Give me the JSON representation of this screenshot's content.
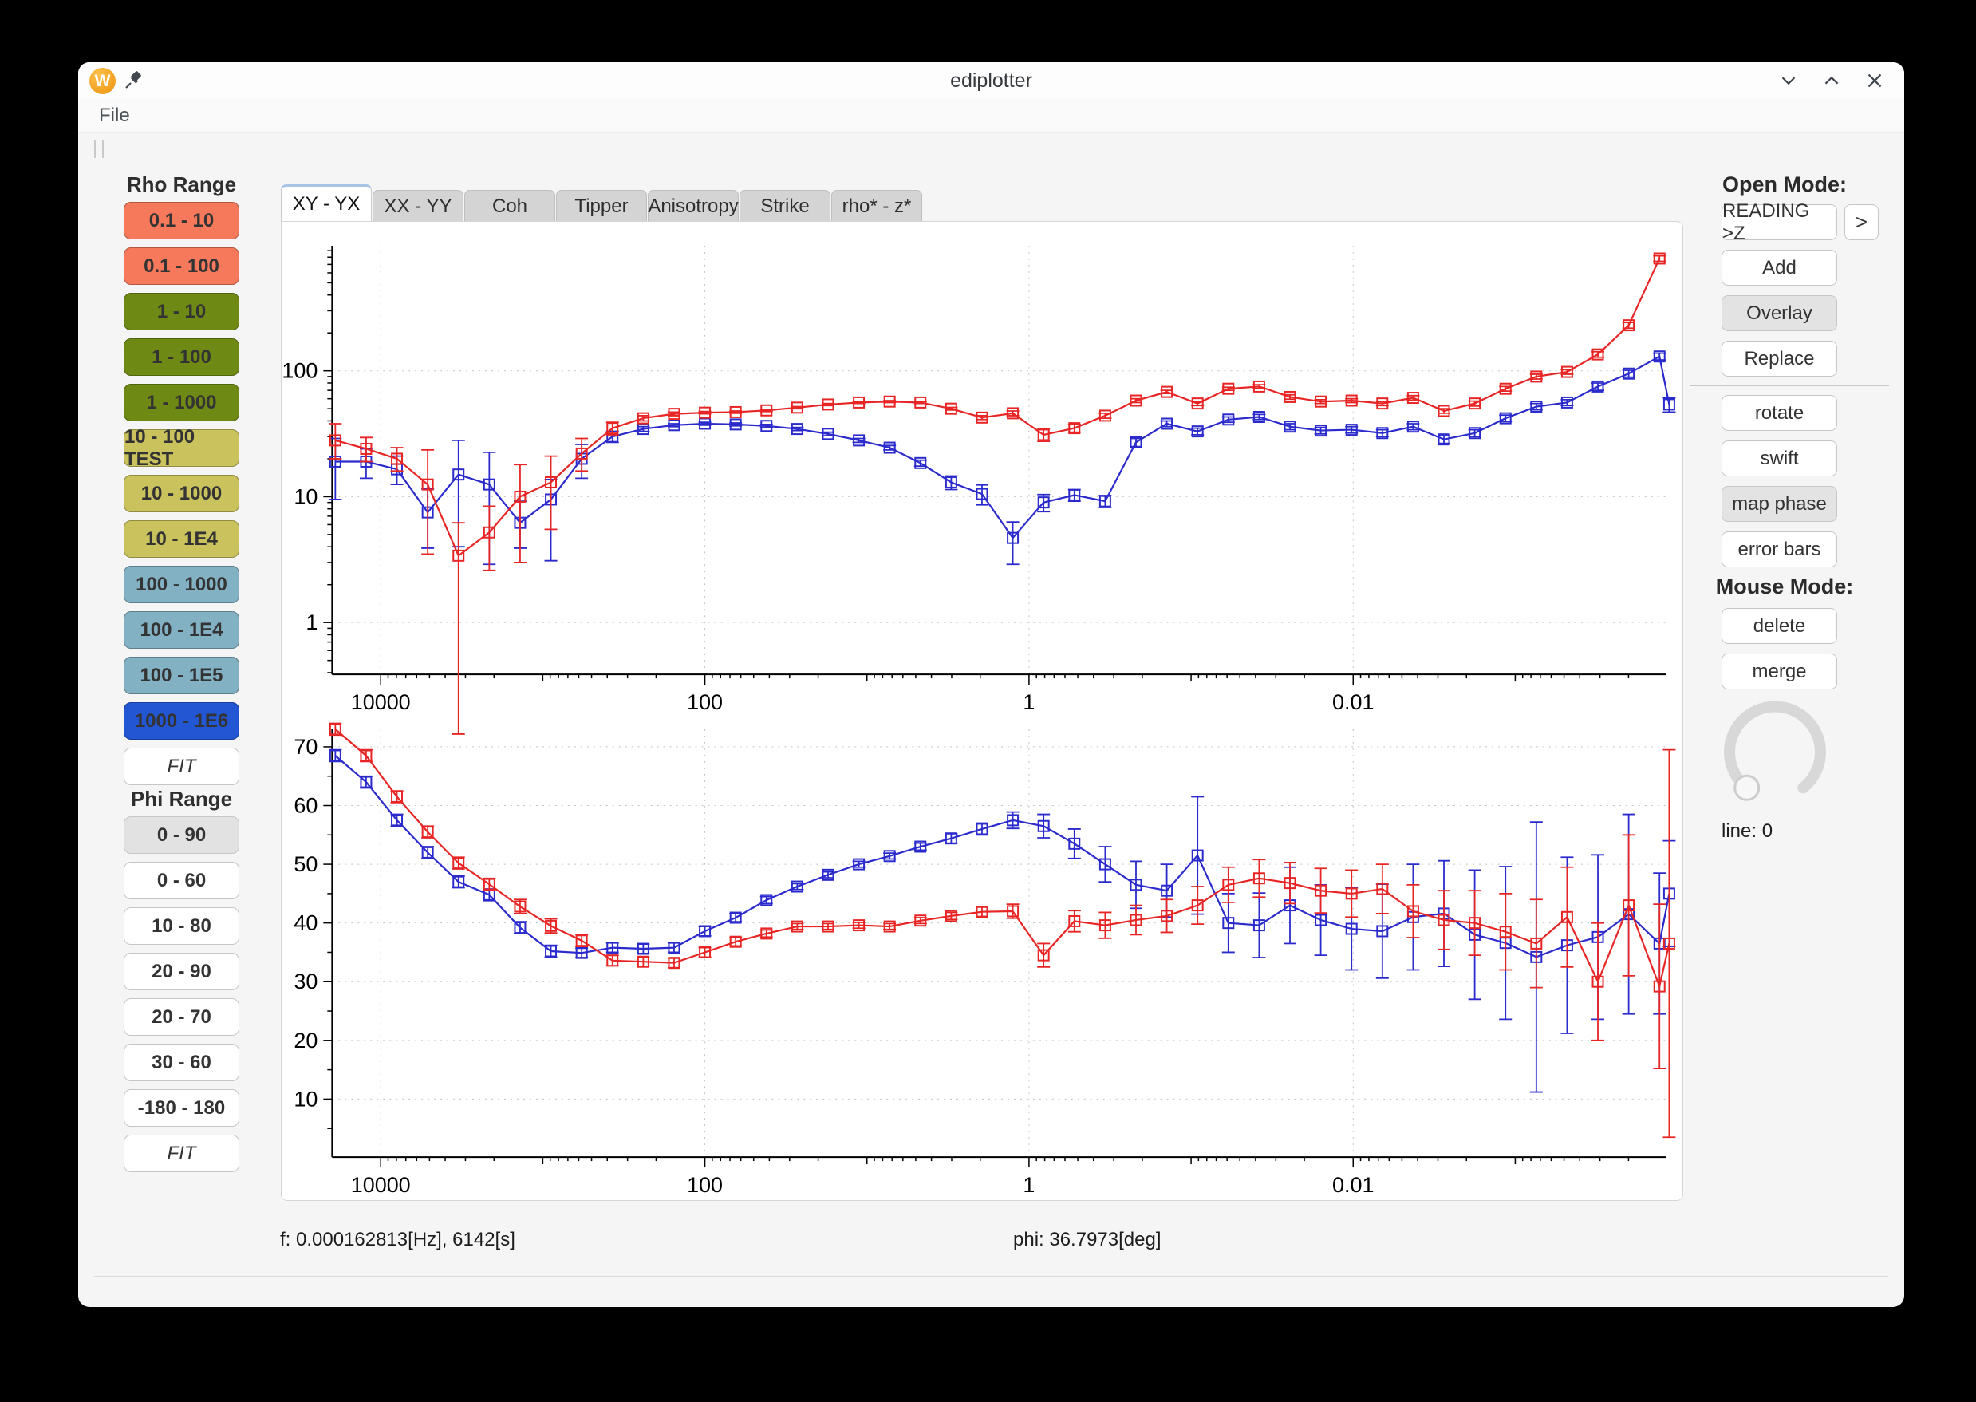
{
  "window": {
    "title": "ediplotter"
  },
  "menubar": {
    "items": [
      "File"
    ]
  },
  "tabs": {
    "items": [
      {
        "label": "XY - YX",
        "active": true
      },
      {
        "label": "XX - YY",
        "active": false
      },
      {
        "label": "Coh",
        "active": false
      },
      {
        "label": "Tipper",
        "active": false
      },
      {
        "label": "Anisotropy",
        "active": false
      },
      {
        "label": "Strike",
        "active": false
      },
      {
        "label": "rho* - z*",
        "active": false
      }
    ]
  },
  "sidebar": {
    "rho": {
      "title": "Rho Range",
      "buttons": [
        {
          "label": "0.1 - 10",
          "color": "#f6795c"
        },
        {
          "label": "0.1 - 100",
          "color": "#f6795c"
        },
        {
          "label": "1 - 10",
          "color": "#6f8a14"
        },
        {
          "label": "1 - 100",
          "color": "#6f8a14"
        },
        {
          "label": "1 - 1000",
          "color": "#6f8a14"
        },
        {
          "label": "10 - 100 TEST",
          "color": "#c9c25d"
        },
        {
          "label": "10 - 1000",
          "color": "#c9c25d"
        },
        {
          "label": "10 - 1E4",
          "color": "#c9c25d"
        },
        {
          "label": "100 - 1000",
          "color": "#82b1c3"
        },
        {
          "label": "100 - 1E4",
          "color": "#82b1c3"
        },
        {
          "label": "100 - 1E5",
          "color": "#82b1c3"
        },
        {
          "label": "1000 - 1E6",
          "color": "#2356d2"
        },
        {
          "label": "FIT",
          "color": "#ffffff",
          "outline": true,
          "italic": true
        }
      ]
    },
    "phi": {
      "title": "Phi Range",
      "buttons": [
        {
          "label": "0 - 90",
          "color": "#e2e2e2",
          "outline": true
        },
        {
          "label": "0 - 60",
          "color": "#ffffff",
          "outline": true
        },
        {
          "label": "10 - 80",
          "color": "#ffffff",
          "outline": true
        },
        {
          "label": "20 - 90",
          "color": "#ffffff",
          "outline": true
        },
        {
          "label": "20 - 70",
          "color": "#ffffff",
          "outline": true
        },
        {
          "label": "30 - 60",
          "color": "#ffffff",
          "outline": true
        },
        {
          "label": "-180 - 180",
          "color": "#ffffff",
          "outline": true
        },
        {
          "label": "FIT",
          "color": "#ffffff",
          "outline": true,
          "italic": true
        }
      ]
    }
  },
  "right_panel": {
    "open_mode": {
      "title": "Open Mode:",
      "arrow_label": ">",
      "items": [
        {
          "label": "READING >Z",
          "arrow": true
        },
        {
          "label": "Add"
        },
        {
          "label": "Overlay",
          "active": true
        },
        {
          "label": "Replace"
        }
      ]
    },
    "tools": {
      "items": [
        {
          "label": "rotate"
        },
        {
          "label": "swift"
        },
        {
          "label": "map phase",
          "active": true
        },
        {
          "label": "error bars"
        }
      ]
    },
    "mouse_mode": {
      "title": "Mouse Mode:",
      "items": [
        {
          "label": "delete"
        },
        {
          "label": "merge"
        }
      ]
    },
    "dial": {
      "label": "line: 0"
    }
  },
  "status": {
    "left": "f: 0.000162813[Hz],  6142[s]",
    "right": "phi: 36.7973[deg]"
  },
  "chart_data": [
    {
      "type": "line",
      "name": "apparent-resistivity",
      "x_axis": "frequency [Hz], log scale, decreasing left to right",
      "x_tick_labels": [
        "10000",
        "100",
        "1",
        "0.01"
      ],
      "x_tick_logf": [
        4,
        2,
        0,
        -2
      ],
      "xlim_logf": [
        4.3,
        -3.93
      ],
      "y_scale": "log",
      "y_tick_labels": [
        "100",
        "10",
        "1"
      ],
      "y_tick_values": [
        100,
        10,
        1
      ],
      "ylim": [
        0.39,
        985
      ],
      "grid": true,
      "series": [
        {
          "name": "rho_yx_blue",
          "color": "#2b2bcd",
          "marker": "open-square",
          "logf": [
            4.28,
            4.09,
            3.9,
            3.71,
            3.52,
            3.33,
            3.14,
            2.95,
            2.76,
            2.57,
            2.38,
            2.19,
            2.0,
            1.81,
            1.62,
            1.43,
            1.24,
            1.05,
            0.86,
            0.67,
            0.48,
            0.29,
            0.1,
            -0.09,
            -0.28,
            -0.47,
            -0.66,
            -0.85,
            -1.04,
            -1.23,
            -1.42,
            -1.61,
            -1.8,
            -1.99,
            -2.18,
            -2.37,
            -2.56,
            -2.75,
            -2.94,
            -3.13,
            -3.32,
            -3.51,
            -3.7,
            -3.89,
            -3.95
          ],
          "values": [
            19,
            19,
            16.5,
            7.5,
            15,
            12.5,
            6.2,
            9.5,
            20,
            30,
            34.5,
            37,
            38,
            37.5,
            36.5,
            34.5,
            31.5,
            28,
            24.5,
            18.5,
            13,
            10.5,
            4.7,
            9,
            10.3,
            9.2,
            27,
            38,
            33,
            41,
            43,
            36,
            33.5,
            34,
            32,
            36,
            28.5,
            32,
            42,
            52,
            56,
            75,
            95,
            130,
            54
          ],
          "err_lo": [
            9.5,
            5,
            4,
            3.6,
            11,
            9.6,
            2.3,
            6.4,
            6,
            3,
            1.5,
            1,
            1,
            1,
            1,
            1,
            1,
            1,
            1,
            1,
            1.6,
            1.9,
            1.8,
            1.4,
            1.1,
            1,
            2,
            2,
            2,
            2,
            2,
            2,
            2,
            2,
            2,
            2,
            2,
            2,
            2.5,
            3,
            3,
            5,
            6,
            8,
            7
          ],
          "err_hi": [
            10,
            5,
            4.5,
            4,
            13,
            10,
            3,
            4.2,
            6,
            3,
            1.5,
            1,
            1,
            1,
            1,
            1,
            1,
            1,
            1,
            1,
            1.6,
            1.9,
            1.6,
            1.4,
            1.1,
            1,
            2,
            2,
            2,
            2,
            2,
            2,
            2,
            2,
            2,
            2,
            2,
            2,
            2.5,
            3,
            3,
            5,
            6,
            8,
            7
          ]
        },
        {
          "name": "rho_xy_red",
          "color": "#e82525",
          "marker": "open-square",
          "logf": [
            4.28,
            4.09,
            3.9,
            3.71,
            3.52,
            3.33,
            3.14,
            2.95,
            2.76,
            2.57,
            2.38,
            2.19,
            2.0,
            1.81,
            1.62,
            1.43,
            1.24,
            1.05,
            0.86,
            0.67,
            0.48,
            0.29,
            0.1,
            -0.09,
            -0.28,
            -0.47,
            -0.66,
            -0.85,
            -1.04,
            -1.23,
            -1.42,
            -1.61,
            -1.8,
            -1.99,
            -2.18,
            -2.37,
            -2.56,
            -2.75,
            -2.94,
            -3.13,
            -3.32,
            -3.51,
            -3.7,
            -3.89
          ],
          "values": [
            28,
            24,
            20,
            12.5,
            3.4,
            5.2,
            10,
            13,
            22,
            35,
            42,
            45.5,
            46.5,
            47,
            48.5,
            51,
            54,
            56,
            57,
            56,
            50,
            42.5,
            46,
            31,
            35,
            44,
            58,
            68,
            55,
            72,
            75,
            62,
            57,
            58,
            55,
            61,
            48,
            55,
            72,
            90,
            98,
            135,
            230,
            780
          ],
          "err_lo": [
            8,
            5,
            4,
            9,
            3.27,
            2.6,
            7,
            7.5,
            6,
            4,
            2,
            1.5,
            1,
            1,
            1,
            1,
            1,
            1,
            1,
            1,
            1.2,
            1.5,
            2,
            3.5,
            2.5,
            2,
            2,
            2,
            2,
            2,
            2.5,
            2.5,
            2,
            2,
            2,
            2.5,
            2,
            2.5,
            3,
            4,
            4,
            7,
            12,
            40
          ],
          "err_hi": [
            10,
            5.5,
            4.5,
            11,
            2.8,
            3.2,
            8,
            8,
            7,
            4,
            2,
            1.5,
            1,
            1,
            1,
            1,
            1,
            1,
            1,
            1,
            1.2,
            1.5,
            2,
            3.5,
            2.5,
            2,
            2,
            2,
            2,
            2,
            2.5,
            2.5,
            2,
            2,
            2,
            2.5,
            2,
            2.5,
            3,
            4,
            4,
            7,
            12,
            40
          ]
        }
      ]
    },
    {
      "type": "line",
      "name": "phase",
      "x_axis": "frequency [Hz], log scale, decreasing left to right",
      "x_tick_labels": [
        "10000",
        "100",
        "1",
        "0.01"
      ],
      "x_tick_logf": [
        4,
        2,
        0,
        -2
      ],
      "xlim_logf": [
        4.3,
        -3.93
      ],
      "y_scale": "linear",
      "y_tick_labels": [
        "70",
        "60",
        "50",
        "40",
        "30",
        "20",
        "10"
      ],
      "y_tick_values": [
        70,
        60,
        50,
        40,
        30,
        20,
        10
      ],
      "ylim": [
        0,
        73
      ],
      "grid": true,
      "series": [
        {
          "name": "phi_yx_blue",
          "color": "#2b2bcd",
          "marker": "open-square",
          "logf": [
            4.28,
            4.09,
            3.9,
            3.71,
            3.52,
            3.33,
            3.14,
            2.95,
            2.76,
            2.57,
            2.38,
            2.19,
            2.0,
            1.81,
            1.62,
            1.43,
            1.24,
            1.05,
            0.86,
            0.67,
            0.48,
            0.29,
            0.1,
            -0.09,
            -0.28,
            -0.47,
            -0.66,
            -0.85,
            -1.04,
            -1.23,
            -1.42,
            -1.61,
            -1.8,
            -1.99,
            -2.18,
            -2.37,
            -2.56,
            -2.75,
            -2.94,
            -3.13,
            -3.32,
            -3.51,
            -3.7,
            -3.89,
            -3.95
          ],
          "values": [
            68.5,
            64,
            57.5,
            52,
            47,
            44.8,
            39.2,
            35.2,
            34.9,
            35.8,
            35.6,
            35.8,
            38.6,
            40.9,
            43.9,
            46.2,
            48.2,
            50,
            51.4,
            53,
            54.4,
            56,
            57.5,
            56.5,
            53.5,
            50,
            46.5,
            45.5,
            51.5,
            40,
            39.6,
            43,
            40.5,
            39,
            38.6,
            41,
            41.6,
            38,
            36.6,
            34.2,
            36.2,
            37.6,
            41.5,
            36.5,
            45
          ],
          "err": [
            1,
            1,
            1,
            1,
            1,
            1,
            1,
            1,
            0.8,
            0.8,
            0.8,
            0.8,
            0.8,
            0.7,
            0.6,
            0.5,
            0.5,
            0.5,
            0.5,
            0.6,
            0.8,
            1,
            1.4,
            2,
            2.5,
            3,
            4,
            4.5,
            10,
            5,
            5.5,
            6.5,
            6,
            7,
            8,
            9,
            9,
            11,
            13,
            23,
            15,
            14,
            17,
            12,
            9
          ]
        },
        {
          "name": "phi_xy_red",
          "color": "#e82525",
          "marker": "open-square",
          "logf": [
            4.28,
            4.09,
            3.9,
            3.71,
            3.52,
            3.33,
            3.14,
            2.95,
            2.76,
            2.57,
            2.38,
            2.19,
            2.0,
            1.81,
            1.62,
            1.43,
            1.24,
            1.05,
            0.86,
            0.67,
            0.48,
            0.29,
            0.1,
            -0.09,
            -0.28,
            -0.47,
            -0.66,
            -0.85,
            -1.04,
            -1.23,
            -1.42,
            -1.61,
            -1.8,
            -1.99,
            -2.18,
            -2.37,
            -2.56,
            -2.75,
            -2.94,
            -3.13,
            -3.32,
            -3.51,
            -3.7,
            -3.89,
            -3.95
          ],
          "values": [
            73,
            68.5,
            61.5,
            55.5,
            50.2,
            46.6,
            42.8,
            39.5,
            37,
            33.6,
            33.4,
            33.2,
            35,
            36.8,
            38.2,
            39.4,
            39.4,
            39.6,
            39.4,
            40.4,
            41.2,
            41.9,
            42,
            34.5,
            40.3,
            39.6,
            40.5,
            41.2,
            43,
            46.5,
            47.6,
            46.8,
            45.5,
            45,
            45.8,
            42,
            40.5,
            40,
            38.5,
            36.5,
            41,
            30,
            43,
            29.2,
            36.5
          ],
          "err": [
            1,
            1,
            1,
            1,
            1,
            1,
            1.2,
            1.2,
            1,
            0.9,
            0.8,
            0.8,
            0.8,
            0.7,
            0.6,
            0.5,
            0.5,
            0.5,
            0.5,
            0.5,
            0.6,
            0.8,
            1.2,
            2,
            1.8,
            2.2,
            2.5,
            2.8,
            3.2,
            3,
            3.2,
            3.5,
            3.8,
            4,
            4.2,
            4.5,
            5,
            5.5,
            6.5,
            7.5,
            8.5,
            10,
            12,
            14,
            33
          ]
        }
      ]
    }
  ]
}
